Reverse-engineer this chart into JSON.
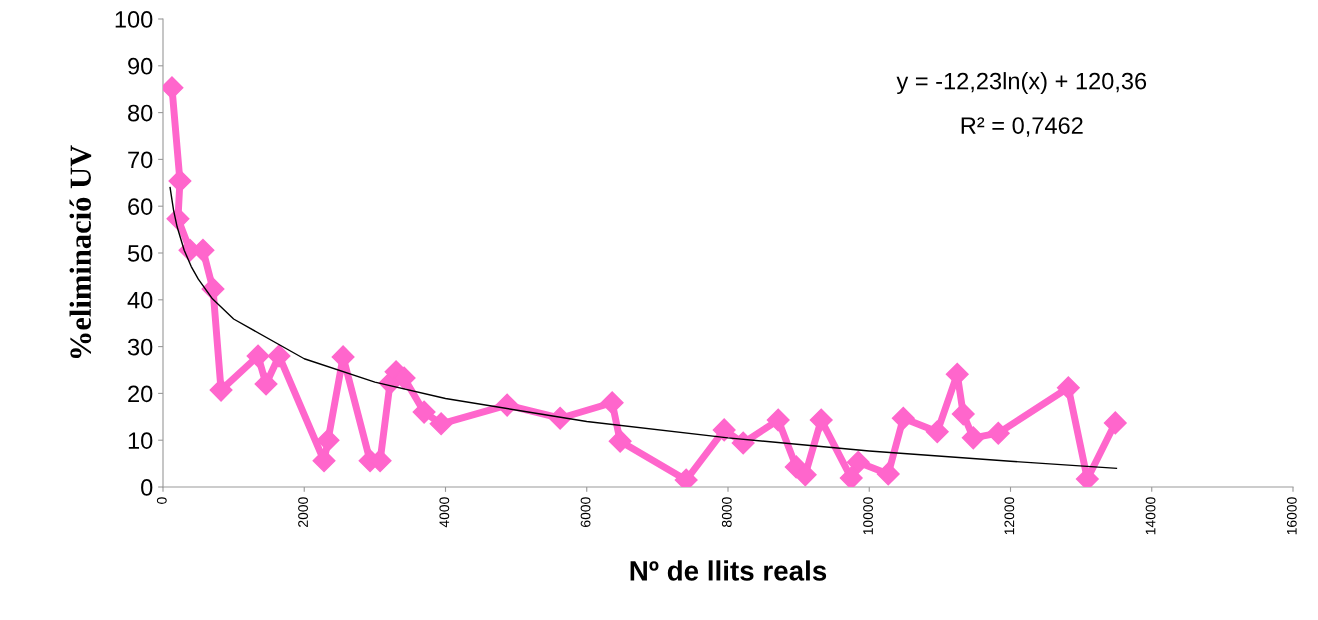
{
  "chart_data": {
    "type": "line",
    "xlabel": "Nº de llits reals",
    "ylabel": "%eliminació UV",
    "annotations": [
      "y = -12,23ln(x) + 120,36",
      "R² = 0,7462"
    ],
    "xlim": [
      0,
      16000
    ],
    "xticks": [
      0,
      2000,
      4000,
      6000,
      8000,
      10000,
      12000,
      14000,
      16000
    ],
    "ylim": [
      0,
      100
    ],
    "yticks": [
      0,
      10,
      20,
      30,
      40,
      50,
      60,
      70,
      80,
      90,
      100
    ],
    "grid": false,
    "legend": false,
    "series": [
      {
        "color": "#ff66cc",
        "marker": "diamond",
        "line_style": "solid",
        "x": [
          127,
          240,
          212,
          382,
          566,
          708,
          822,
          1346,
          1459,
          1643,
          2280,
          2337,
          2550,
          2932,
          3074,
          3215,
          3300,
          3414,
          3697,
          3938,
          4873,
          5623,
          6360,
          6473,
          7408,
          7946,
          8215,
          8711,
          8966,
          9093,
          9320,
          9745,
          9844,
          10269,
          10482,
          10963,
          11246,
          11331,
          11473,
          11827,
          12819,
          13088,
          13484
        ],
        "values": [
          85.3,
          65.4,
          57.3,
          50.6,
          50.6,
          42.3,
          20.7,
          28,
          22,
          28,
          5.6,
          10,
          27.8,
          5.6,
          5.6,
          22.2,
          24.6,
          23.3,
          16,
          13.5,
          17.5,
          14.7,
          18,
          9.8,
          1.5,
          12.2,
          9.4,
          14.3,
          4.3,
          2.6,
          14.3,
          1.9,
          5.3,
          2.8,
          14.7,
          11.8,
          24.1,
          15.6,
          10.5,
          11.5,
          21.2,
          1.7,
          13.7
        ]
      },
      {
        "color": "#000000",
        "marker": "none",
        "line_style": "solid",
        "x": [
          100,
          150,
          200,
          300,
          400,
          500,
          700,
          1000,
          2000,
          3000,
          4000,
          6000,
          8000,
          10000,
          12000,
          13500
        ],
        "values": [
          64.0,
          59.1,
          55.6,
          50.6,
          47.1,
          44.4,
          40.2,
          35.9,
          27.4,
          22.4,
          18.9,
          14.0,
          10.5,
          7.7,
          5.5,
          4.0
        ]
      }
    ]
  }
}
